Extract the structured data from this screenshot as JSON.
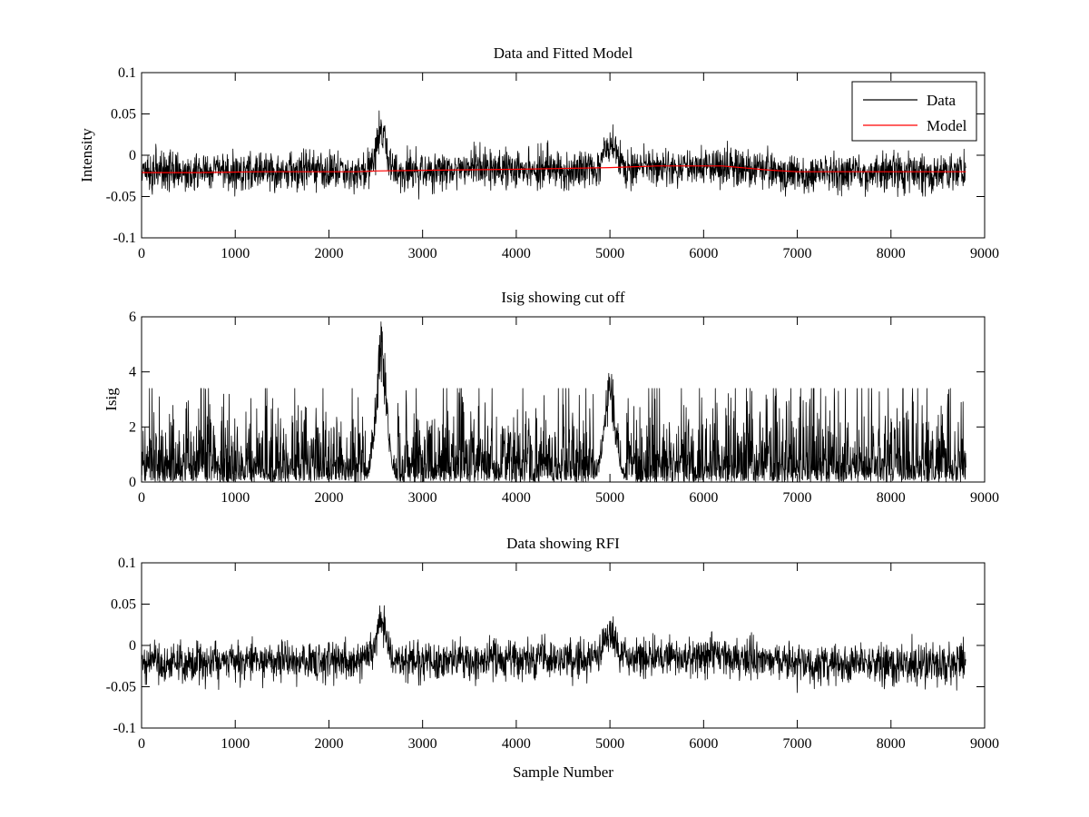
{
  "figure": {
    "background": "#ffffff"
  },
  "chart_data": [
    {
      "type": "line",
      "title": "Data and Fitted Model",
      "xlabel": "",
      "ylabel": "Intensity",
      "xlim": [
        0,
        9000
      ],
      "ylim": [
        -0.1,
        0.1
      ],
      "x_ticks": [
        0,
        1000,
        2000,
        3000,
        4000,
        5000,
        6000,
        7000,
        8000,
        9000
      ],
      "y_ticks": [
        -0.1,
        -0.05,
        0,
        0.05,
        0.1
      ],
      "y_tick_labels": [
        "-0.1",
        "-0.05",
        "0",
        "0.05",
        "0.1"
      ],
      "grid": false,
      "legend": "top-right",
      "series": [
        {
          "name": "Data",
          "color": "#000000",
          "kind": "noise",
          "x_range": [
            0,
            8800
          ],
          "baseline": [
            [
              0,
              -0.02
            ],
            [
              2000,
              -0.02
            ],
            [
              2300,
              -0.019
            ],
            [
              4000,
              -0.017
            ],
            [
              5000,
              -0.015
            ],
            [
              6200,
              -0.013
            ],
            [
              7000,
              -0.022
            ],
            [
              8800,
              -0.022
            ]
          ],
          "noise_amplitude": 0.012,
          "peaks": [
            {
              "x": 2560,
              "height": 0.047,
              "width": 55
            },
            {
              "x": 5000,
              "height": 0.03,
              "width": 60
            }
          ]
        },
        {
          "name": "Model",
          "color": "#ff0000",
          "kind": "line",
          "x": [
            0,
            600,
            1300,
            1900,
            2300,
            2500,
            3200,
            4000,
            4500,
            5000,
            5500,
            6200,
            6700,
            7000,
            8000,
            8800
          ],
          "values": [
            -0.021,
            -0.021,
            -0.02,
            -0.02,
            -0.02,
            -0.019,
            -0.018,
            -0.017,
            -0.016,
            -0.015,
            -0.013,
            -0.013,
            -0.018,
            -0.02,
            -0.02,
            -0.02
          ]
        }
      ]
    },
    {
      "type": "line",
      "title": "Isig showing cut off",
      "xlabel": "",
      "ylabel": "Isig",
      "xlim": [
        0,
        9000
      ],
      "ylim": [
        0,
        6
      ],
      "x_ticks": [
        0,
        1000,
        2000,
        3000,
        4000,
        5000,
        6000,
        7000,
        8000,
        9000
      ],
      "y_ticks": [
        0,
        2,
        4,
        6
      ],
      "y_tick_labels": [
        "0",
        "2",
        "4",
        "6"
      ],
      "grid": false,
      "legend": "none",
      "series": [
        {
          "color": "#000000",
          "kind": "abs-noise",
          "x_range": [
            0,
            8800
          ],
          "noise_amplitude": 0.9,
          "max_value": 3.4,
          "peaks": [
            {
              "x": 2560,
              "height": 5.8,
              "width": 55
            },
            {
              "x": 5000,
              "height": 3.8,
              "width": 60
            }
          ]
        }
      ]
    },
    {
      "type": "line",
      "title": "Data showing RFI",
      "xlabel": "Sample Number",
      "ylabel": "",
      "xlim": [
        0,
        9000
      ],
      "ylim": [
        -0.1,
        0.1
      ],
      "x_ticks": [
        0,
        1000,
        2000,
        3000,
        4000,
        5000,
        6000,
        7000,
        8000,
        9000
      ],
      "y_ticks": [
        -0.1,
        -0.05,
        0,
        0.05,
        0.1
      ],
      "y_tick_labels": [
        "-0.1",
        "-0.05",
        "0",
        "0.05",
        "0.1"
      ],
      "grid": false,
      "legend": "none",
      "series": [
        {
          "color": "#000000",
          "kind": "noise",
          "x_range": [
            0,
            8800
          ],
          "baseline": [
            [
              0,
              -0.02
            ],
            [
              2000,
              -0.02
            ],
            [
              2300,
              -0.019
            ],
            [
              4000,
              -0.017
            ],
            [
              5000,
              -0.015
            ],
            [
              6200,
              -0.013
            ],
            [
              7000,
              -0.022
            ],
            [
              8800,
              -0.022
            ]
          ],
          "noise_amplitude": 0.012,
          "peaks": [
            {
              "x": 2560,
              "height": 0.047,
              "width": 55
            },
            {
              "x": 5000,
              "height": 0.03,
              "width": 60
            }
          ]
        }
      ]
    }
  ]
}
